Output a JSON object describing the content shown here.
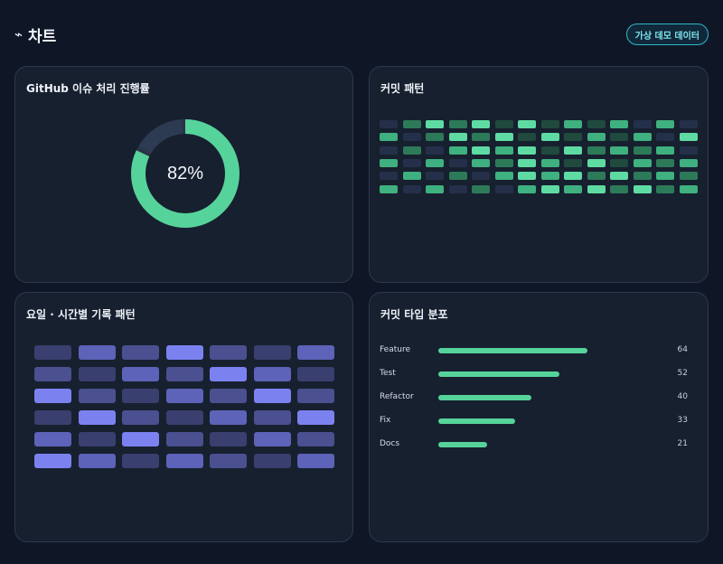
{
  "header": {
    "icon": "pulse-icon",
    "icon_glyph": "⌁",
    "title": "차트",
    "badge": "가상 데모 데이터"
  },
  "cards": {
    "progress": {
      "title": "GitHub 이슈 처리 진행률",
      "label": "82%"
    },
    "commits": {
      "title": "커밋 패턴"
    },
    "weekly": {
      "title": "요일 · 시간별 기록 패턴"
    },
    "types": {
      "title": "커밋 타입 분포"
    }
  },
  "colors": {
    "accent_green": "#56d39b",
    "accent_indigo": "#7b82f0",
    "track": "#2a3447"
  },
  "chart_data": [
    {
      "type": "pie",
      "title": "GitHub 이슈 처리 진행률",
      "values": [
        82,
        18
      ],
      "center_label": "82%"
    },
    {
      "type": "heatmap",
      "title": "커밋 패턴",
      "palette": [
        "#24304a",
        "#1f4a3d",
        "#2d7a59",
        "#3fb07f",
        "#5edba3"
      ],
      "values": [
        [
          0,
          2,
          4,
          2,
          4,
          1,
          4,
          1,
          3,
          1,
          3,
          0,
          3,
          0
        ],
        [
          3,
          0,
          2,
          4,
          2,
          4,
          1,
          4,
          1,
          3,
          1,
          3,
          0,
          4
        ],
        [
          0,
          2,
          0,
          3,
          4,
          3,
          4,
          1,
          4,
          2,
          3,
          2,
          3,
          0
        ],
        [
          3,
          0,
          3,
          0,
          3,
          2,
          4,
          3,
          1,
          4,
          1,
          3,
          2,
          3
        ],
        [
          0,
          3,
          0,
          2,
          0,
          3,
          4,
          3,
          4,
          2,
          4,
          2,
          3,
          2
        ],
        [
          3,
          0,
          3,
          0,
          2,
          0,
          3,
          4,
          3,
          4,
          2,
          4,
          2,
          3
        ]
      ]
    },
    {
      "type": "heatmap",
      "title": "요일 · 시간별 기록 패턴",
      "palette": [
        "#2b3356",
        "#393f6e",
        "#4a5090",
        "#5d63b8",
        "#7b82f0"
      ],
      "values": [
        [
          1,
          3,
          2,
          4,
          2,
          1,
          3
        ],
        [
          2,
          1,
          3,
          2,
          4,
          3,
          1
        ],
        [
          4,
          2,
          1,
          3,
          2,
          4,
          2
        ],
        [
          1,
          4,
          2,
          1,
          3,
          2,
          4
        ],
        [
          3,
          1,
          4,
          2,
          1,
          3,
          2
        ],
        [
          4,
          3,
          1,
          3,
          2,
          1,
          3
        ]
      ]
    },
    {
      "type": "bar",
      "title": "커밋 타입 분포",
      "categories": [
        "Feature",
        "Test",
        "Refactor",
        "Fix",
        "Docs"
      ],
      "values": [
        64,
        52,
        40,
        33,
        21
      ],
      "xlim": [
        0,
        64
      ]
    }
  ]
}
